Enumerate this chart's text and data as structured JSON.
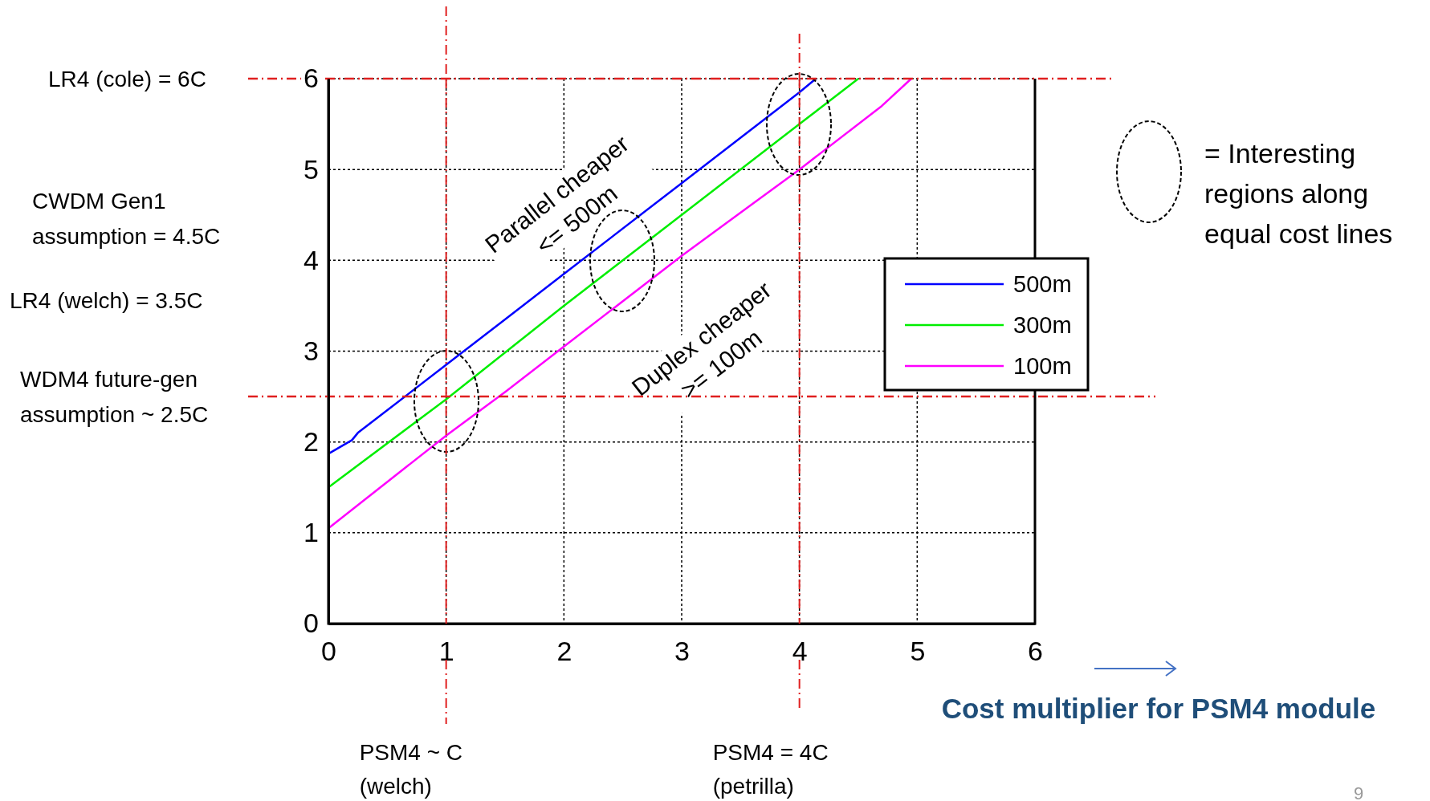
{
  "chart_data": {
    "type": "line",
    "xlabel": "Cost multiplier for PSM4 module",
    "xlim": [
      0,
      6
    ],
    "xticks": [
      0,
      1,
      2,
      3,
      4,
      5,
      6
    ],
    "ylim": [
      0,
      6
    ],
    "yticks": [
      0,
      1,
      2,
      3,
      4,
      5,
      6
    ],
    "grid": true,
    "legend": "right",
    "line_style": "solid",
    "series": [
      {
        "name": "500m",
        "color": "#0000ff",
        "x": [
          0,
          0.2,
          0.25,
          1,
          1.5,
          2,
          3,
          4,
          4.14
        ],
        "values": [
          1.87,
          2.02,
          2.1,
          2.85,
          3.35,
          3.85,
          4.85,
          5.85,
          6
        ]
      },
      {
        "name": "300m",
        "color": "#00ee00",
        "x": [
          0,
          1,
          2,
          3,
          4,
          4.5
        ],
        "values": [
          1.5,
          2.47,
          3.5,
          4.5,
          5.5,
          6
        ]
      },
      {
        "name": "100m",
        "color": "#ff00ff",
        "x": [
          0,
          1,
          1.5,
          2,
          3,
          4,
          4.7,
          4.95
        ],
        "values": [
          1.05,
          2.07,
          2.55,
          3.05,
          4.05,
          5,
          5.7,
          6
        ]
      }
    ],
    "ref_lines": [
      {
        "axis": "y",
        "value": 6,
        "label": "LR4 (cole) = 6C",
        "color": "#e02020"
      },
      {
        "axis": "y",
        "value": 2.5,
        "label": "WDM4 future-gen assumption ~ 2.5C",
        "color": "#e02020"
      },
      {
        "axis": "x",
        "value": 1,
        "label": "PSM4 ~ C (welch)",
        "color": "#e02020"
      },
      {
        "axis": "x",
        "value": 4,
        "label": "PSM4 = 4C (petrilla)",
        "color": "#e02020"
      }
    ],
    "annotations": [
      "CWDM Gen1 assumption = 4.5C",
      "LR4 (welch) = 3.5C",
      "Parallel cheaper <= 500m",
      "Duplex cheaper >= 100m",
      "9",
      "= Interesting regions along equal cost lines"
    ]
  }
}
